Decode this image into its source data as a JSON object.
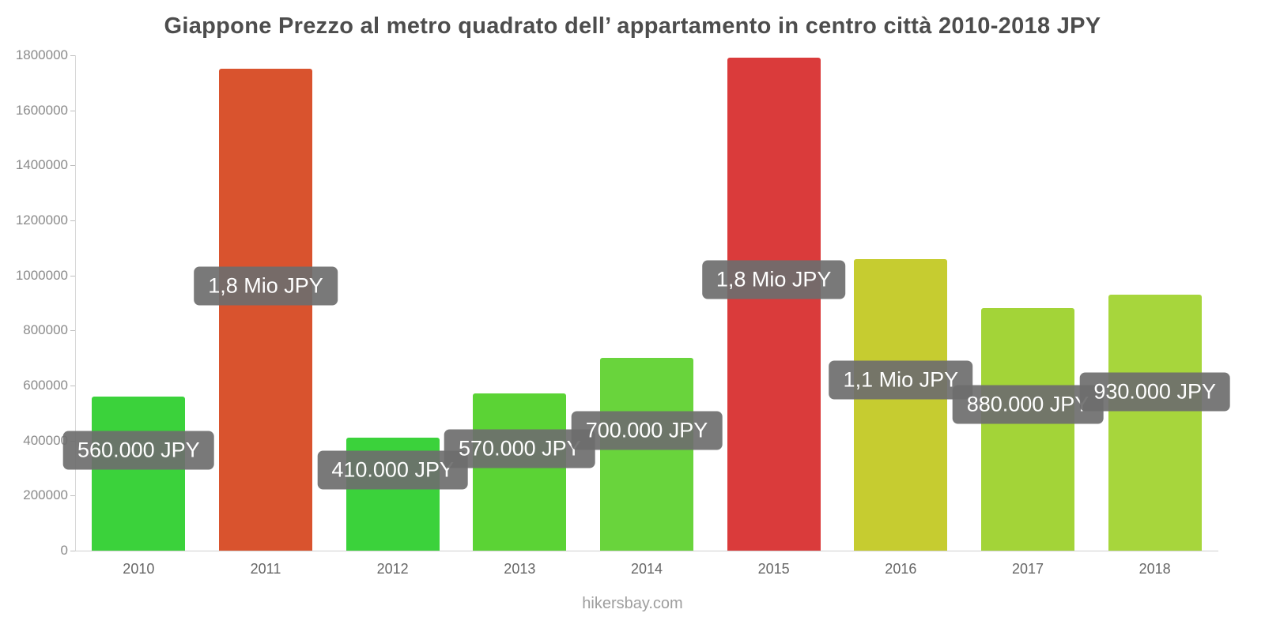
{
  "watermark": "hikersbay.com",
  "chart_data": {
    "type": "bar",
    "title": "Giappone Prezzo al metro quadrato dell’ appartamento in centro città 2010-2018 JPY",
    "categories": [
      "2010",
      "2011",
      "2012",
      "2013",
      "2014",
      "2015",
      "2016",
      "2017",
      "2018"
    ],
    "values": [
      560000,
      1750000,
      410000,
      570000,
      700000,
      1790000,
      1060000,
      880000,
      930000
    ],
    "labels": [
      "560.000 JPY",
      "1,8 Mio JPY",
      "410.000 JPY",
      "570.000 JPY",
      "700.000 JPY",
      "1,8 Mio JPY",
      "1,1 Mio JPY",
      "880.000 JPY",
      "930.000 JPY"
    ],
    "bar_colors": [
      "#3bd23b",
      "#d9532e",
      "#3bd23b",
      "#5bd335",
      "#69d43c",
      "#da3b3b",
      "#c6cc30",
      "#a3d438",
      "#a7d63c"
    ],
    "label_box_color": "#6e6e6e",
    "xlabel": "",
    "ylabel": "",
    "ylim": [
      0,
      1800000
    ],
    "ytick_step": 200000,
    "ytick_labels": [
      "0",
      "200000",
      "400000",
      "600000",
      "800000",
      "1000000",
      "1200000",
      "1400000",
      "1600000",
      "1800000"
    ],
    "grid": false,
    "legend": false
  }
}
